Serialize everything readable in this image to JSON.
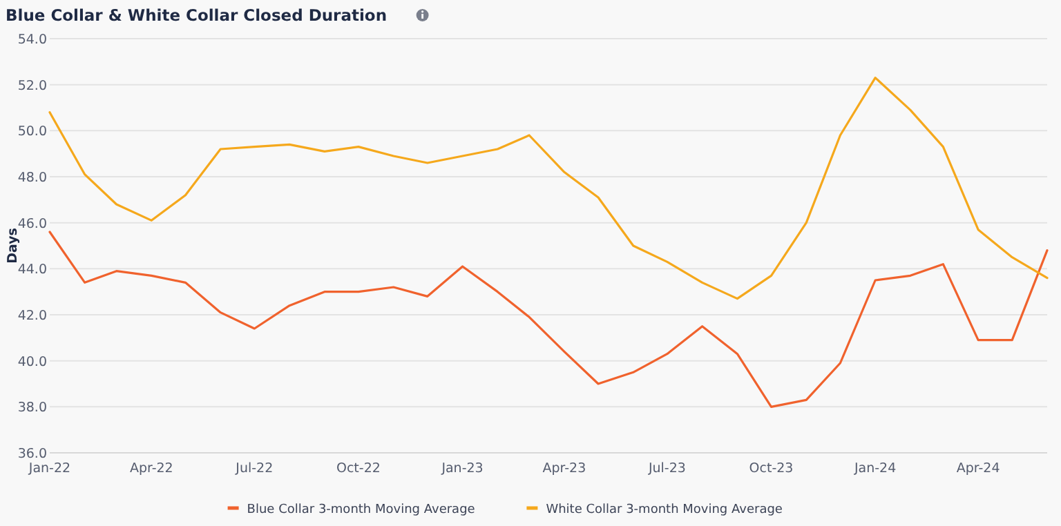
{
  "chart_data": {
    "type": "line",
    "title": "Blue Collar & White Collar Closed Duration",
    "ylabel": "Days",
    "x": [
      "2022-01",
      "2022-02",
      "2022-03",
      "2022-04",
      "2022-05",
      "2022-06",
      "2022-07",
      "2022-08",
      "2022-09",
      "2022-10",
      "2022-11",
      "2022-12",
      "2023-01",
      "2023-02",
      "2023-03",
      "2023-04",
      "2023-05",
      "2023-06",
      "2023-07",
      "2023-08",
      "2023-09",
      "2023-10",
      "2023-11",
      "2023-12",
      "2024-01",
      "2024-02",
      "2024-03",
      "2024-04",
      "2024-05",
      "2024-06"
    ],
    "series": [
      {
        "name": "Blue Collar 3-month Moving Average",
        "color": "#f0622d",
        "values": [
          45.6,
          43.4,
          43.9,
          43.7,
          43.4,
          42.1,
          41.4,
          42.4,
          43.0,
          43.0,
          43.2,
          42.8,
          44.1,
          43.0,
          41.9,
          40.4,
          39.0,
          39.5,
          40.3,
          41.5,
          40.3,
          38.0,
          38.3,
          39.9,
          43.5,
          43.7,
          44.2,
          40.9,
          40.9,
          44.8
        ]
      },
      {
        "name": "White Collar 3-month Moving Average",
        "color": "#f5a81c",
        "values": [
          50.8,
          48.1,
          46.8,
          46.1,
          47.2,
          49.2,
          49.3,
          49.4,
          49.1,
          49.3,
          48.9,
          48.6,
          48.9,
          49.2,
          49.8,
          48.2,
          47.1,
          45.0,
          44.3,
          43.4,
          42.7,
          43.7,
          46.0,
          49.8,
          52.3,
          50.9,
          49.3,
          45.7,
          44.5,
          43.6
        ]
      }
    ],
    "xlim": [
      "2022-01",
      "2024-06"
    ],
    "xticks": [
      {
        "value": "2022-01",
        "label": "Jan-22"
      },
      {
        "value": "2022-04",
        "label": "Apr-22"
      },
      {
        "value": "2022-07",
        "label": "Jul-22"
      },
      {
        "value": "2022-10",
        "label": "Oct-22"
      },
      {
        "value": "2023-01",
        "label": "Jan-23"
      },
      {
        "value": "2023-04",
        "label": "Apr-23"
      },
      {
        "value": "2023-07",
        "label": "Jul-23"
      },
      {
        "value": "2023-10",
        "label": "Oct-23"
      },
      {
        "value": "2024-01",
        "label": "Jan-24"
      },
      {
        "value": "2024-04",
        "label": "Apr-24"
      }
    ],
    "ylim": [
      36,
      54
    ],
    "yticks": [
      {
        "value": 36,
        "label": "36.0"
      },
      {
        "value": 38,
        "label": "38.0"
      },
      {
        "value": 40,
        "label": "40.0"
      },
      {
        "value": 42,
        "label": "42.0"
      },
      {
        "value": 44,
        "label": "44.0"
      },
      {
        "value": 46,
        "label": "46.0"
      },
      {
        "value": 48,
        "label": "48.0"
      },
      {
        "value": 50,
        "label": "50.0"
      },
      {
        "value": 52,
        "label": "52.0"
      },
      {
        "value": 54,
        "label": "54.0"
      }
    ],
    "grid": "y",
    "legend": "bottom",
    "marker": "none",
    "line_style": "solid"
  }
}
